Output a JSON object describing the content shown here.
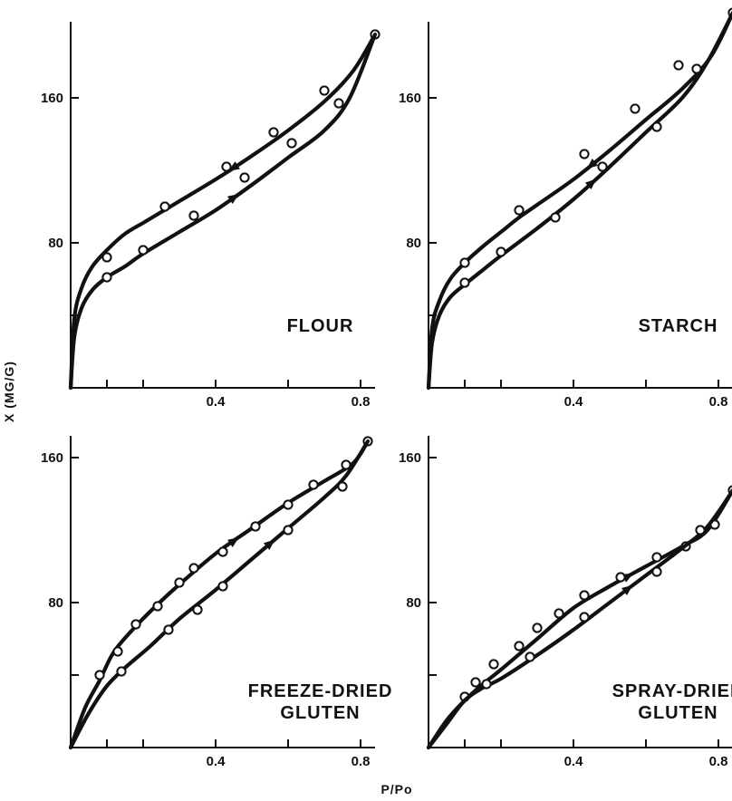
{
  "figure": {
    "ylabel": "X (MG/G)",
    "xlabel": "P/Po"
  },
  "chart_data": [
    {
      "type": "line",
      "label_lines": [
        "FLOUR"
      ],
      "xlim": [
        0,
        0.84
      ],
      "ylim": [
        0,
        200
      ],
      "xticks": [
        "",
        "",
        "0.4",
        "",
        "0.8"
      ],
      "yticks": [
        "",
        "80",
        "160"
      ],
      "x_tick_values": [
        0.1,
        0.2,
        0.4,
        0.6,
        0.8
      ],
      "y_tick_values": [
        40,
        80,
        160
      ],
      "series": [
        {
          "role": "upper",
          "arrow": "left",
          "curve": [
            [
              0,
              0
            ],
            [
              0.01,
              38
            ],
            [
              0.03,
              55
            ],
            [
              0.06,
              67
            ],
            [
              0.1,
              76
            ],
            [
              0.15,
              85
            ],
            [
              0.2,
              91
            ],
            [
              0.25,
              97
            ],
            [
              0.3,
              103
            ],
            [
              0.4,
              115
            ],
            [
              0.5,
              128
            ],
            [
              0.6,
              142
            ],
            [
              0.7,
              158
            ],
            [
              0.78,
              175
            ],
            [
              0.84,
              195
            ]
          ],
          "points": [
            [
              0.1,
              72
            ],
            [
              0.26,
              100
            ],
            [
              0.43,
              122
            ],
            [
              0.56,
              141
            ],
            [
              0.7,
              164
            ],
            [
              0.84,
              195
            ]
          ]
        },
        {
          "role": "lower",
          "arrow": "right",
          "curve": [
            [
              0,
              0
            ],
            [
              0.01,
              28
            ],
            [
              0.03,
              44
            ],
            [
              0.06,
              54
            ],
            [
              0.1,
              61
            ],
            [
              0.15,
              67
            ],
            [
              0.2,
              74
            ],
            [
              0.3,
              86
            ],
            [
              0.4,
              98
            ],
            [
              0.5,
              112
            ],
            [
              0.6,
              127
            ],
            [
              0.7,
              142
            ],
            [
              0.77,
              160
            ],
            [
              0.84,
              195
            ]
          ],
          "points": [
            [
              0.1,
              61
            ],
            [
              0.2,
              76
            ],
            [
              0.34,
              95
            ],
            [
              0.48,
              116
            ],
            [
              0.61,
              135
            ],
            [
              0.74,
              157
            ]
          ]
        }
      ]
    },
    {
      "type": "line",
      "label_lines": [
        "STARCH"
      ],
      "xlim": [
        0,
        0.84
      ],
      "ylim": [
        0,
        200
      ],
      "xticks": [
        "",
        "",
        "0.4",
        "",
        "0.8"
      ],
      "yticks": [
        "",
        "80",
        "160"
      ],
      "x_tick_values": [
        0.1,
        0.2,
        0.4,
        0.6,
        0.8
      ],
      "y_tick_values": [
        40,
        80,
        160
      ],
      "series": [
        {
          "role": "upper",
          "arrow": "left",
          "curve": [
            [
              0,
              0
            ],
            [
              0.01,
              33
            ],
            [
              0.03,
              48
            ],
            [
              0.06,
              60
            ],
            [
              0.1,
              69
            ],
            [
              0.15,
              78
            ],
            [
              0.2,
              86
            ],
            [
              0.25,
              94
            ],
            [
              0.3,
              101
            ],
            [
              0.4,
              115
            ],
            [
              0.5,
              131
            ],
            [
              0.6,
              148
            ],
            [
              0.7,
              165
            ],
            [
              0.78,
              183
            ],
            [
              0.84,
              207
            ]
          ],
          "points": [
            [
              0.1,
              69
            ],
            [
              0.25,
              98
            ],
            [
              0.43,
              129
            ],
            [
              0.57,
              154
            ],
            [
              0.69,
              178
            ],
            [
              0.84,
              207
            ]
          ]
        },
        {
          "role": "lower",
          "arrow": "right",
          "curve": [
            [
              0,
              0
            ],
            [
              0.01,
              25
            ],
            [
              0.03,
              40
            ],
            [
              0.06,
              50
            ],
            [
              0.1,
              57
            ],
            [
              0.15,
              65
            ],
            [
              0.2,
              73
            ],
            [
              0.3,
              88
            ],
            [
              0.4,
              104
            ],
            [
              0.5,
              122
            ],
            [
              0.6,
              141
            ],
            [
              0.7,
              160
            ],
            [
              0.77,
              180
            ],
            [
              0.84,
              207
            ]
          ],
          "points": [
            [
              0.1,
              58
            ],
            [
              0.2,
              75
            ],
            [
              0.35,
              94
            ],
            [
              0.48,
              122
            ],
            [
              0.63,
              144
            ],
            [
              0.74,
              176
            ]
          ]
        }
      ]
    },
    {
      "type": "line",
      "label_lines": [
        "FREEZE-DRIED",
        "GLUTEN"
      ],
      "xlim": [
        0,
        0.84
      ],
      "ylim": [
        0,
        170
      ],
      "xticks": [
        "",
        "",
        "0.4",
        "",
        "0.8"
      ],
      "yticks": [
        "",
        "80",
        "160"
      ],
      "x_tick_values": [
        0.1,
        0.2,
        0.4,
        0.6,
        0.8
      ],
      "y_tick_values": [
        40,
        80,
        160
      ],
      "series": [
        {
          "role": "upper",
          "arrow": "right",
          "curve": [
            [
              0,
              0
            ],
            [
              0.04,
              22
            ],
            [
              0.08,
              37
            ],
            [
              0.12,
              53
            ],
            [
              0.18,
              67
            ],
            [
              0.24,
              79
            ],
            [
              0.3,
              90
            ],
            [
              0.4,
              107
            ],
            [
              0.5,
              121
            ],
            [
              0.6,
              135
            ],
            [
              0.7,
              147
            ],
            [
              0.78,
              157
            ],
            [
              0.82,
              169
            ]
          ],
          "points": [
            [
              0.08,
              40
            ],
            [
              0.13,
              53
            ],
            [
              0.18,
              68
            ],
            [
              0.24,
              78
            ],
            [
              0.3,
              91
            ],
            [
              0.34,
              99
            ],
            [
              0.42,
              108
            ],
            [
              0.51,
              122
            ],
            [
              0.6,
              134
            ],
            [
              0.67,
              145
            ],
            [
              0.76,
              156
            ],
            [
              0.82,
              169
            ]
          ]
        },
        {
          "role": "lower",
          "arrow": "right",
          "curve": [
            [
              0,
              0
            ],
            [
              0.05,
              19
            ],
            [
              0.1,
              34
            ],
            [
              0.15,
              44
            ],
            [
              0.22,
              56
            ],
            [
              0.3,
              71
            ],
            [
              0.4,
              87
            ],
            [
              0.5,
              104
            ],
            [
              0.6,
              121
            ],
            [
              0.7,
              138
            ],
            [
              0.76,
              150
            ],
            [
              0.82,
              169
            ]
          ],
          "points": [
            [
              0.14,
              42
            ],
            [
              0.27,
              65
            ],
            [
              0.35,
              76
            ],
            [
              0.42,
              89
            ],
            [
              0.6,
              120
            ],
            [
              0.75,
              144
            ]
          ]
        }
      ]
    },
    {
      "type": "line",
      "label_lines": [
        "SPRAY-DRIED",
        "GLUTEN"
      ],
      "xlim": [
        0,
        0.84
      ],
      "ylim": [
        0,
        170
      ],
      "xticks": [
        "",
        "",
        "0.4",
        "",
        "0.8"
      ],
      "yticks": [
        "",
        "80",
        "160"
      ],
      "x_tick_values": [
        0.1,
        0.2,
        0.4,
        0.6,
        0.8
      ],
      "y_tick_values": [
        40,
        80,
        160
      ],
      "series": [
        {
          "role": "upper",
          "arrow": "right",
          "curve": [
            [
              0,
              0
            ],
            [
              0.05,
              15
            ],
            [
              0.1,
              26
            ],
            [
              0.15,
              35
            ],
            [
              0.2,
              43
            ],
            [
              0.3,
              60
            ],
            [
              0.4,
              77
            ],
            [
              0.5,
              89
            ],
            [
              0.6,
              100
            ],
            [
              0.7,
              111
            ],
            [
              0.77,
              120
            ],
            [
              0.84,
              142
            ]
          ],
          "points": [
            [
              0.1,
              28
            ],
            [
              0.13,
              36
            ],
            [
              0.18,
              46
            ],
            [
              0.25,
              56
            ],
            [
              0.3,
              66
            ],
            [
              0.36,
              74
            ],
            [
              0.43,
              84
            ],
            [
              0.53,
              94
            ],
            [
              0.63,
              105
            ],
            [
              0.71,
              111
            ],
            [
              0.79,
              123
            ],
            [
              0.84,
              142
            ]
          ]
        },
        {
          "role": "lower",
          "arrow": "right",
          "curve": [
            [
              0,
              0
            ],
            [
              0.05,
              13
            ],
            [
              0.1,
              26
            ],
            [
              0.15,
              33
            ],
            [
              0.2,
              38
            ],
            [
              0.3,
              51
            ],
            [
              0.4,
              65
            ],
            [
              0.5,
              80
            ],
            [
              0.6,
              95
            ],
            [
              0.7,
              110
            ],
            [
              0.77,
              122
            ],
            [
              0.84,
              142
            ]
          ],
          "points": [
            [
              0.16,
              35
            ],
            [
              0.28,
              50
            ],
            [
              0.43,
              72
            ],
            [
              0.63,
              97
            ],
            [
              0.75,
              120
            ]
          ]
        }
      ]
    }
  ]
}
